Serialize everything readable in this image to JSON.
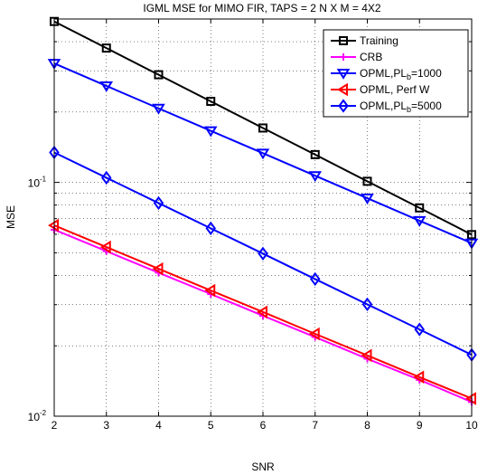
{
  "chart_data": {
    "type": "line",
    "title": "IGML MSE for MIMO FIR, TAPS = 2 N X M = 4X2",
    "xlabel": "SNR",
    "ylabel": "MSE",
    "x": [
      2,
      3,
      4,
      5,
      6,
      7,
      8,
      9,
      10
    ],
    "xlim": [
      2,
      10
    ],
    "ylim": [
      0.01,
      0.5
    ],
    "yscale": "log",
    "grid": true,
    "legend_position": "top-right",
    "xtick_labels": [
      "2",
      "3",
      "4",
      "5",
      "6",
      "7",
      "8",
      "9",
      "10"
    ],
    "ytick_labels": [
      {
        "value": 0.1,
        "base": "10",
        "exp": "-1"
      },
      {
        "value": 0.01,
        "base": "10",
        "exp": "-2"
      }
    ],
    "series": [
      {
        "name": "Training",
        "legend_main": "Training",
        "legend_sub": "",
        "legend_tail": "",
        "color": "#000000",
        "marker": "square",
        "values": [
          0.488,
          0.3755,
          0.2888,
          0.2222,
          0.1709,
          0.1315,
          0.1011,
          0.0778,
          0.0598
        ]
      },
      {
        "name": "CRB",
        "legend_main": "CRB",
        "legend_sub": "",
        "legend_tail": "",
        "color": "#ff00ff",
        "marker": "plus",
        "values": [
          0.0628,
          0.0508,
          0.0411,
          0.0333,
          0.0269,
          0.0218,
          0.0176,
          0.0143,
          0.0115
        ]
      },
      {
        "name": "OPML,PL_b=1000",
        "legend_main": "OPML,PL",
        "legend_sub": "b",
        "legend_tail": "=1000",
        "color": "#0000ff",
        "marker": "triangle-down",
        "values": [
          0.3228,
          0.2587,
          0.2074,
          0.1662,
          0.1333,
          0.1068,
          0.0856,
          0.0686,
          0.055
        ]
      },
      {
        "name": "OPML, Perf W",
        "legend_main": "OPML, Perf W",
        "legend_sub": "",
        "legend_tail": "",
        "color": "#ff0000",
        "marker": "triangle-left",
        "values": [
          0.0655,
          0.0529,
          0.0427,
          0.0345,
          0.0279,
          0.0225,
          0.0182,
          0.0147,
          0.0119
        ]
      },
      {
        "name": "OPML,PL_b=5000",
        "legend_main": "OPML,PL",
        "legend_sub": "b",
        "legend_tail": "=5000",
        "color": "#0000ff",
        "marker": "diamond",
        "values": [
          0.1343,
          0.1047,
          0.0816,
          0.0636,
          0.0496,
          0.0386,
          0.0301,
          0.0235,
          0.0183
        ]
      }
    ]
  }
}
